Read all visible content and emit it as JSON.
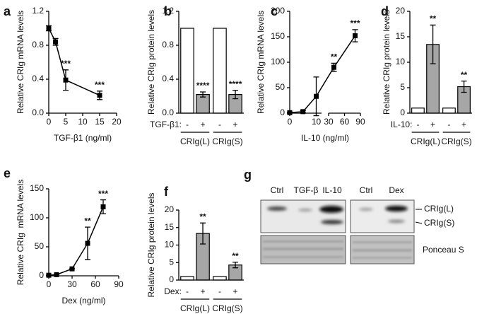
{
  "chart_data": [
    {
      "panel": "a",
      "type": "line",
      "xlabel": "TGF-β1 (ng/ml)",
      "ylabel": "Relative CRIg mRNA levels",
      "x": [
        0,
        2,
        5,
        15
      ],
      "values": [
        1.0,
        0.84,
        0.39,
        0.21
      ],
      "errors": [
        0.03,
        0.04,
        0.12,
        0.05
      ],
      "annotations": [
        null,
        null,
        "***",
        "***"
      ],
      "color": "#000000",
      "xlim": [
        0,
        20
      ],
      "xticks": [
        0,
        5,
        10,
        15,
        20
      ],
      "ylim": [
        0,
        1.2
      ],
      "yticks": [
        {
          "value": 0,
          "label": "0.0"
        },
        0.4,
        0.8,
        1.2
      ]
    },
    {
      "panel": "b",
      "type": "bar",
      "ylabel": "Relative CRIg protein levels",
      "category_label": "TGF-β1:",
      "categories": [
        "-",
        "+",
        "-",
        "+"
      ],
      "groups": [
        "CRIg(L)",
        "CRIg(S)"
      ],
      "values": [
        1,
        0.22,
        1,
        0.22
      ],
      "errors": [
        null,
        0.03,
        null,
        0.05
      ],
      "annotations": [
        null,
        "****",
        null,
        "****"
      ],
      "colors": [
        "#ffffff",
        "#a6a6a6",
        "#ffffff",
        "#a6a6a6"
      ],
      "ylim": [
        0,
        1.2
      ],
      "yticks": [
        {
          "value": 0,
          "label": "0.0"
        },
        0.4,
        0.8,
        1.2
      ]
    },
    {
      "panel": "c",
      "type": "line",
      "xlabel": "IL-10 (ng/ml)",
      "ylabel": "Relative CRIg mRNA levels",
      "x": [
        0,
        5,
        10,
        40,
        80
      ],
      "values": [
        1,
        3,
        33,
        90,
        152
      ],
      "errors": [
        1,
        2,
        38,
        8,
        12
      ],
      "annotations": [
        null,
        null,
        null,
        "**",
        "***"
      ],
      "color": "#000000",
      "xlim": [
        0,
        90
      ],
      "x_break": [
        12,
        30
      ],
      "xticks": [
        0,
        10,
        30,
        60,
        90
      ],
      "ylim": [
        0,
        200
      ],
      "yticks": [
        0,
        50,
        100,
        150,
        200
      ]
    },
    {
      "panel": "d",
      "type": "bar",
      "ylabel": "Relative CRIg protein levels",
      "category_label": "IL-10:",
      "categories": [
        "-",
        "+",
        "-",
        "+"
      ],
      "groups": [
        "CRIg(L)",
        "CRIg(S)"
      ],
      "values": [
        1,
        13.5,
        1,
        5.2
      ],
      "errors": [
        null,
        3.8,
        null,
        1.1
      ],
      "annotations": [
        null,
        "**",
        null,
        "**"
      ],
      "colors": [
        "#ffffff",
        "#a6a6a6",
        "#ffffff",
        "#a6a6a6"
      ],
      "ylim": [
        0,
        20
      ],
      "yticks": [
        0,
        5,
        10,
        15,
        20
      ]
    },
    {
      "panel": "e",
      "type": "line",
      "xlabel": "Dex (ng/ml)",
      "ylabel": "Relative CRIg  mRNA levels",
      "x": [
        0,
        10,
        30,
        50,
        70
      ],
      "values": [
        1,
        2,
        12,
        56,
        119
      ],
      "errors": [
        0,
        0,
        0,
        28,
        12
      ],
      "annotations": [
        null,
        null,
        null,
        "**",
        "***"
      ],
      "color": "#000000",
      "xlim": [
        0,
        90
      ],
      "xticks": [
        0,
        30,
        60,
        90
      ],
      "ylim": [
        0,
        150
      ],
      "yticks": [
        0,
        50,
        100,
        150
      ]
    },
    {
      "panel": "f",
      "type": "bar",
      "ylabel": "Relative CRIg protein levels",
      "category_label": "Dex:",
      "categories": [
        "-",
        "+",
        "-",
        "+"
      ],
      "groups": [
        "CRIg(L)",
        "CRIg(S)"
      ],
      "values": [
        1,
        13.3,
        1,
        4.3
      ],
      "errors": [
        null,
        3,
        null,
        0.8
      ],
      "annotations": [
        null,
        "**",
        null,
        "**"
      ],
      "colors": [
        "#ffffff",
        "#a6a6a6",
        "#ffffff",
        "#a6a6a6"
      ],
      "ylim": [
        0,
        20
      ],
      "yticks": [
        0,
        5,
        10,
        15,
        20
      ]
    }
  ],
  "blot": {
    "panel": "g",
    "lanes": [
      "Ctrl",
      "TGF-β",
      "IL-10",
      "Ctrl",
      "Dex"
    ],
    "bands": [
      "CRIg(L)",
      "CRIg(S)"
    ],
    "loading": "Ponceau S"
  }
}
